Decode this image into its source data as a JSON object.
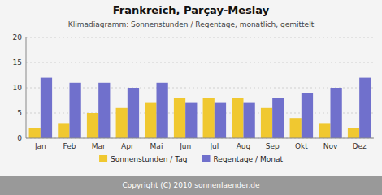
{
  "chart_data": {
    "type": "bar",
    "title": "Frankreich, Parçay-Meslay",
    "subtitle": "Klimadiagramm: Sonnenstunden / Regentage, monatlich, gemittelt",
    "categories": [
      "Jan",
      "Feb",
      "Mar",
      "Apr",
      "Mai",
      "Jun",
      "Jul",
      "Aug",
      "Sep",
      "Okt",
      "Nov",
      "Dez"
    ],
    "series": [
      {
        "name": "Sonnenstunden / Tag",
        "color": "#f0c830",
        "values": [
          2,
          3,
          5,
          6,
          7,
          8,
          8,
          8,
          6,
          4,
          3,
          2
        ]
      },
      {
        "name": "Regentage / Monat",
        "color": "#7070cc",
        "values": [
          12,
          11,
          11,
          10,
          11,
          7,
          7,
          7,
          8,
          9,
          10,
          12
        ]
      }
    ],
    "ylim": [
      0,
      20
    ],
    "yticks": [
      0,
      5,
      10,
      15,
      20
    ],
    "grid": true,
    "legend": "bottom",
    "annotations": [
      "Copyright (C) 2010 sonnenlaender.de"
    ]
  }
}
